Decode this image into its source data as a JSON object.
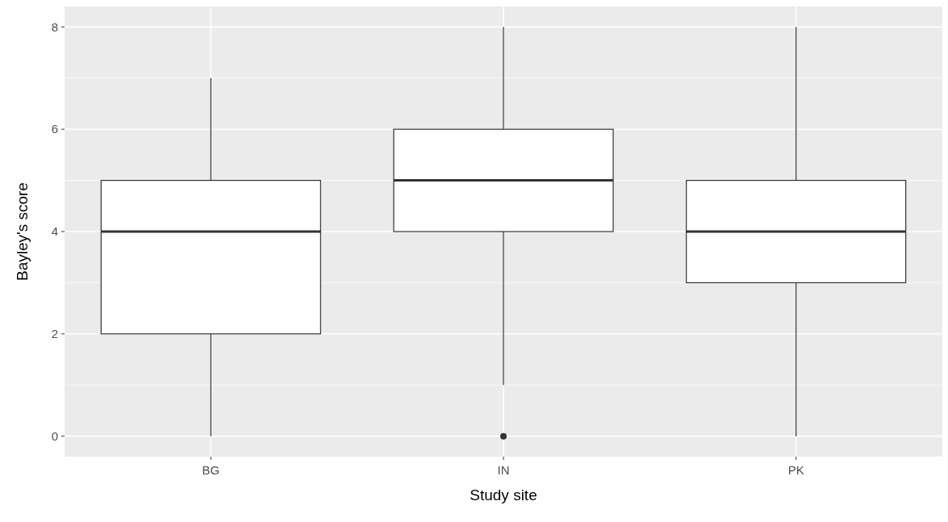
{
  "chart_data": {
    "type": "box",
    "xlabel": "Study site",
    "ylabel": "Bayley's score",
    "categories": [
      "BG",
      "IN",
      "PK"
    ],
    "boxes": [
      {
        "low": 0,
        "q1": 2,
        "median": 4,
        "q3": 5,
        "high": 7
      },
      {
        "low": 1,
        "q1": 4,
        "median": 5,
        "q3": 6,
        "high": 8,
        "outliers": [
          0
        ]
      },
      {
        "low": 0,
        "q1": 3,
        "median": 4,
        "q3": 5,
        "high": 8
      }
    ],
    "ylim": [
      -0.4,
      8.4
    ],
    "yticks": [
      0,
      {
        "value": 1,
        "label": null
      },
      2,
      {
        "value": 3,
        "label": null
      },
      4,
      {
        "value": 5,
        "label": null
      },
      6,
      {
        "value": 7,
        "label": null
      },
      8
    ],
    "grid": true
  }
}
